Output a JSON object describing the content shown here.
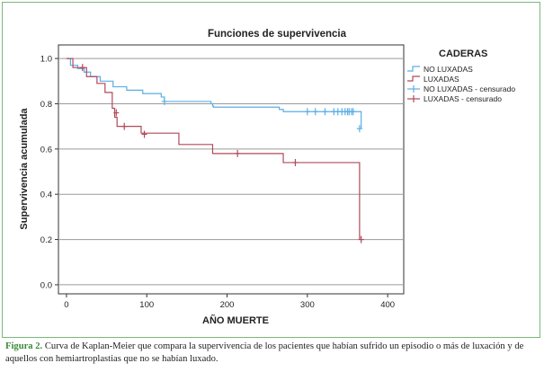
{
  "chart_data": {
    "type": "line",
    "title": "Funciones de supervivencia",
    "xlabel": "AÑO MUERTE",
    "ylabel": "Supervivencia acumulada",
    "xlim": [
      -10,
      420
    ],
    "ylim": [
      -0.04,
      1.06
    ],
    "xticks": [
      0,
      100,
      200,
      300,
      400
    ],
    "yticks": [
      0.0,
      0.2,
      0.4,
      0.6,
      0.8,
      1.0
    ],
    "ytick_labels": [
      "0.0",
      "0.2",
      "0.4",
      "0.6",
      "0.8",
      "1.0"
    ],
    "grid": "horizontal",
    "legend": {
      "title": "CADERAS",
      "placement": "right",
      "entries": [
        "NO LUXADAS",
        "LUXADAS",
        "NO LUXADAS - censurado",
        "LUXADAS - censurado"
      ]
    },
    "series": [
      {
        "name": "NO LUXADAS",
        "color": "#5aaee6",
        "steps": [
          [
            0,
            1.0
          ],
          [
            5,
            0.97
          ],
          [
            14,
            0.955
          ],
          [
            22,
            0.94
          ],
          [
            30,
            0.92
          ],
          [
            42,
            0.9
          ],
          [
            58,
            0.875
          ],
          [
            75,
            0.86
          ],
          [
            95,
            0.845
          ],
          [
            118,
            0.83
          ],
          [
            122,
            0.81
          ],
          [
            180,
            0.8
          ],
          [
            182,
            0.79
          ],
          [
            183,
            0.785
          ],
          [
            265,
            0.775
          ],
          [
            270,
            0.765
          ],
          [
            365,
            0.765
          ],
          [
            367,
            0.69
          ]
        ],
        "censored": [
          [
            122,
            0.81
          ],
          [
            300,
            0.765
          ],
          [
            310,
            0.765
          ],
          [
            322,
            0.765
          ],
          [
            333,
            0.765
          ],
          [
            338,
            0.765
          ],
          [
            343,
            0.765
          ],
          [
            347,
            0.765
          ],
          [
            350,
            0.765
          ],
          [
            352,
            0.765
          ],
          [
            355,
            0.765
          ],
          [
            357,
            0.765
          ],
          [
            365,
            0.69
          ]
        ]
      },
      {
        "name": "LUXADAS",
        "color": "#b04a5a",
        "steps": [
          [
            0,
            1.0
          ],
          [
            8,
            0.96
          ],
          [
            25,
            0.92
          ],
          [
            38,
            0.89
          ],
          [
            48,
            0.85
          ],
          [
            57,
            0.78
          ],
          [
            60,
            0.74
          ],
          [
            63,
            0.7
          ],
          [
            93,
            0.67
          ],
          [
            140,
            0.62
          ],
          [
            182,
            0.58
          ],
          [
            270,
            0.54
          ],
          [
            365,
            0.2
          ]
        ],
        "censored": [
          [
            20,
            0.96
          ],
          [
            62,
            0.76
          ],
          [
            72,
            0.7
          ],
          [
            97,
            0.665
          ],
          [
            213,
            0.58
          ],
          [
            285,
            0.54
          ],
          [
            367,
            0.2
          ]
        ]
      }
    ]
  },
  "caption": {
    "label": "Figura 2.",
    "text": "Curva de Kaplan-Meier que compara la supervivencia de los pacientes que habían sufrido un episodio o más de luxación y de aquellos con hemiartroplastias que no se habían luxado."
  }
}
